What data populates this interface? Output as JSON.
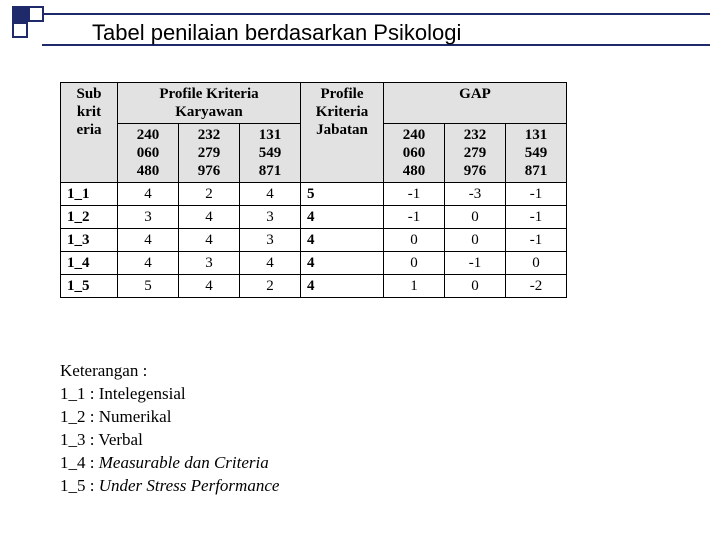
{
  "title": "Tabel penilaian berdasarkan Psikologi",
  "decor": {
    "border_color": "#1f2a6b",
    "square_size": 12
  },
  "table": {
    "header": {
      "col_sub": "Sub krit eria",
      "group_profile": "Profile Kriteria Karyawan",
      "col_pk_jabatan": "Profile Kriteria Jabatan",
      "group_gap": "GAP",
      "ids": [
        "240 060 480",
        "232 279 976",
        "131 549 871"
      ]
    },
    "rows": [
      {
        "k": "1_1",
        "pk": [
          "4",
          "2",
          "4"
        ],
        "pj": "5",
        "gap": [
          "-1",
          "-3",
          "-1"
        ]
      },
      {
        "k": "1_2",
        "pk": [
          "3",
          "4",
          "3"
        ],
        "pj": "4",
        "gap": [
          "-1",
          "0",
          "-1"
        ]
      },
      {
        "k": "1_3",
        "pk": [
          "4",
          "4",
          "3"
        ],
        "pj": "4",
        "gap": [
          "0",
          "0",
          "-1"
        ]
      },
      {
        "k": "1_4",
        "pk": [
          "4",
          "3",
          "4"
        ],
        "pj": "4",
        "gap": [
          "0",
          "-1",
          "0"
        ]
      },
      {
        "k": "1_5",
        "pk": [
          "5",
          "4",
          "2"
        ],
        "pj": "4",
        "gap": [
          "1",
          "0",
          "-2"
        ]
      }
    ]
  },
  "legend": {
    "title": "Keterangan :",
    "items": [
      {
        "k": "1_1",
        "v": "Intelegensial",
        "italic": false
      },
      {
        "k": "1_2",
        "v": "Numerikal",
        "italic": false
      },
      {
        "k": "1_3",
        "v": "Verbal",
        "italic": false
      },
      {
        "k": "1_4",
        "v": "Measurable dan Criteria",
        "italic": true
      },
      {
        "k": "1_5",
        "v": "Under Stress Performance",
        "italic": true
      }
    ]
  }
}
